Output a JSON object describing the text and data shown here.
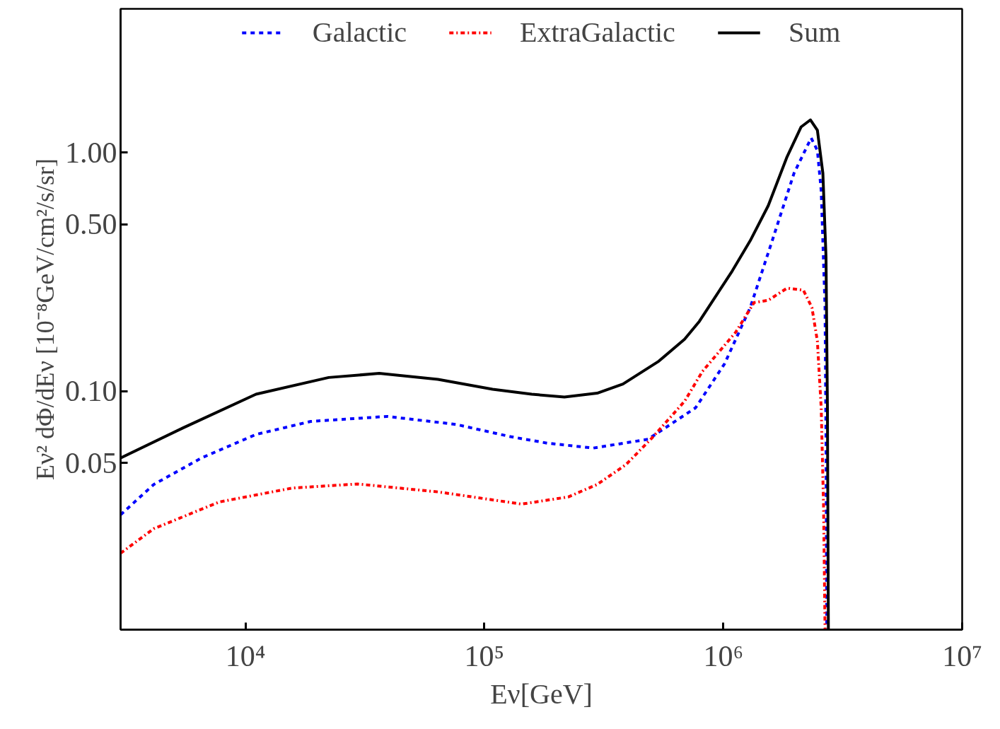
{
  "chart_data": {
    "type": "line",
    "xlabel": "Eν[GeV]",
    "ylabel": "Eν² dΦ/dEν [10⁻⁸GeV/cm²/s/sr]",
    "log": "xy",
    "grid": false,
    "legend": "top",
    "xlim": [
      3000,
      10000000
    ],
    "ylim": [
      0.01,
      4
    ],
    "xticks": [
      {
        "value": 10000,
        "label": "10⁴"
      },
      {
        "value": 100000,
        "label": "10⁵"
      },
      {
        "value": 1000000,
        "label": "10⁶"
      },
      {
        "value": 10000000,
        "label": "10⁷"
      }
    ],
    "yticks": [
      {
        "value": 0.05,
        "label": "0.05"
      },
      {
        "value": 0.1,
        "label": "0.10"
      },
      {
        "value": 0.5,
        "label": "0.50"
      },
      {
        "value": 1,
        "label": "1.00"
      }
    ],
    "series": [
      {
        "name": "Galactic",
        "color": "#0000ff",
        "line_style": "dashed",
        "x": [
          3000,
          4130,
          6530,
          11070,
          18750,
          39200,
          76000,
          128600,
          183200,
          285800,
          484200,
          765600,
          1012000,
          1297000,
          1603000,
          1977000,
          2333000,
          2477000,
          2570000,
          2667000,
          2692000,
          2710000
        ],
        "values": [
          0.0303,
          0.0406,
          0.0524,
          0.0658,
          0.0746,
          0.0783,
          0.0725,
          0.0644,
          0.0605,
          0.0577,
          0.0628,
          0.0851,
          0.13,
          0.224,
          0.427,
          0.818,
          1.15,
          1.02,
          0.692,
          0.224,
          0.0614,
          0.01
        ]
      },
      {
        "name": "ExtraGalactic",
        "color": "#ff0000",
        "line_style": "dashdot",
        "x": [
          3000,
          4130,
          7780,
          15640,
          29440,
          63900,
          142900,
          157800,
          224400,
          296500,
          391700,
          502300,
          688700,
          818400,
          1125000,
          1346000,
          1542000,
          1849000,
          2163000,
          2350000,
          2477000,
          2570000,
          2630000,
          2667000
        ],
        "values": [
          0.0209,
          0.0265,
          0.0343,
          0.0392,
          0.0408,
          0.0378,
          0.0336,
          0.0341,
          0.036,
          0.0406,
          0.0492,
          0.0635,
          0.0906,
          0.121,
          0.176,
          0.235,
          0.24,
          0.27,
          0.265,
          0.224,
          0.162,
          0.0851,
          0.0323,
          0.01
        ]
      },
      {
        "name": "Sum",
        "color": "#000000",
        "line_style": "solid",
        "x": [
          3000,
          5460,
          11070,
          22300,
          36300,
          63900,
          108200,
          157800,
          216300,
          296500,
          380200,
          537000,
          688700,
          794300,
          1091000,
          1297000,
          1542000,
          1849000,
          2118000,
          2317000,
          2477000,
          2612000,
          2692000,
          2729000,
          2754000
        ],
        "values": [
          0.0524,
          0.07,
          0.097,
          0.114,
          0.1186,
          0.112,
          0.1018,
          0.097,
          0.0944,
          0.098,
          0.107,
          0.1334,
          0.165,
          0.196,
          0.319,
          0.427,
          0.598,
          0.959,
          1.28,
          1.37,
          1.24,
          0.818,
          0.364,
          0.085,
          0.01
        ]
      }
    ]
  }
}
